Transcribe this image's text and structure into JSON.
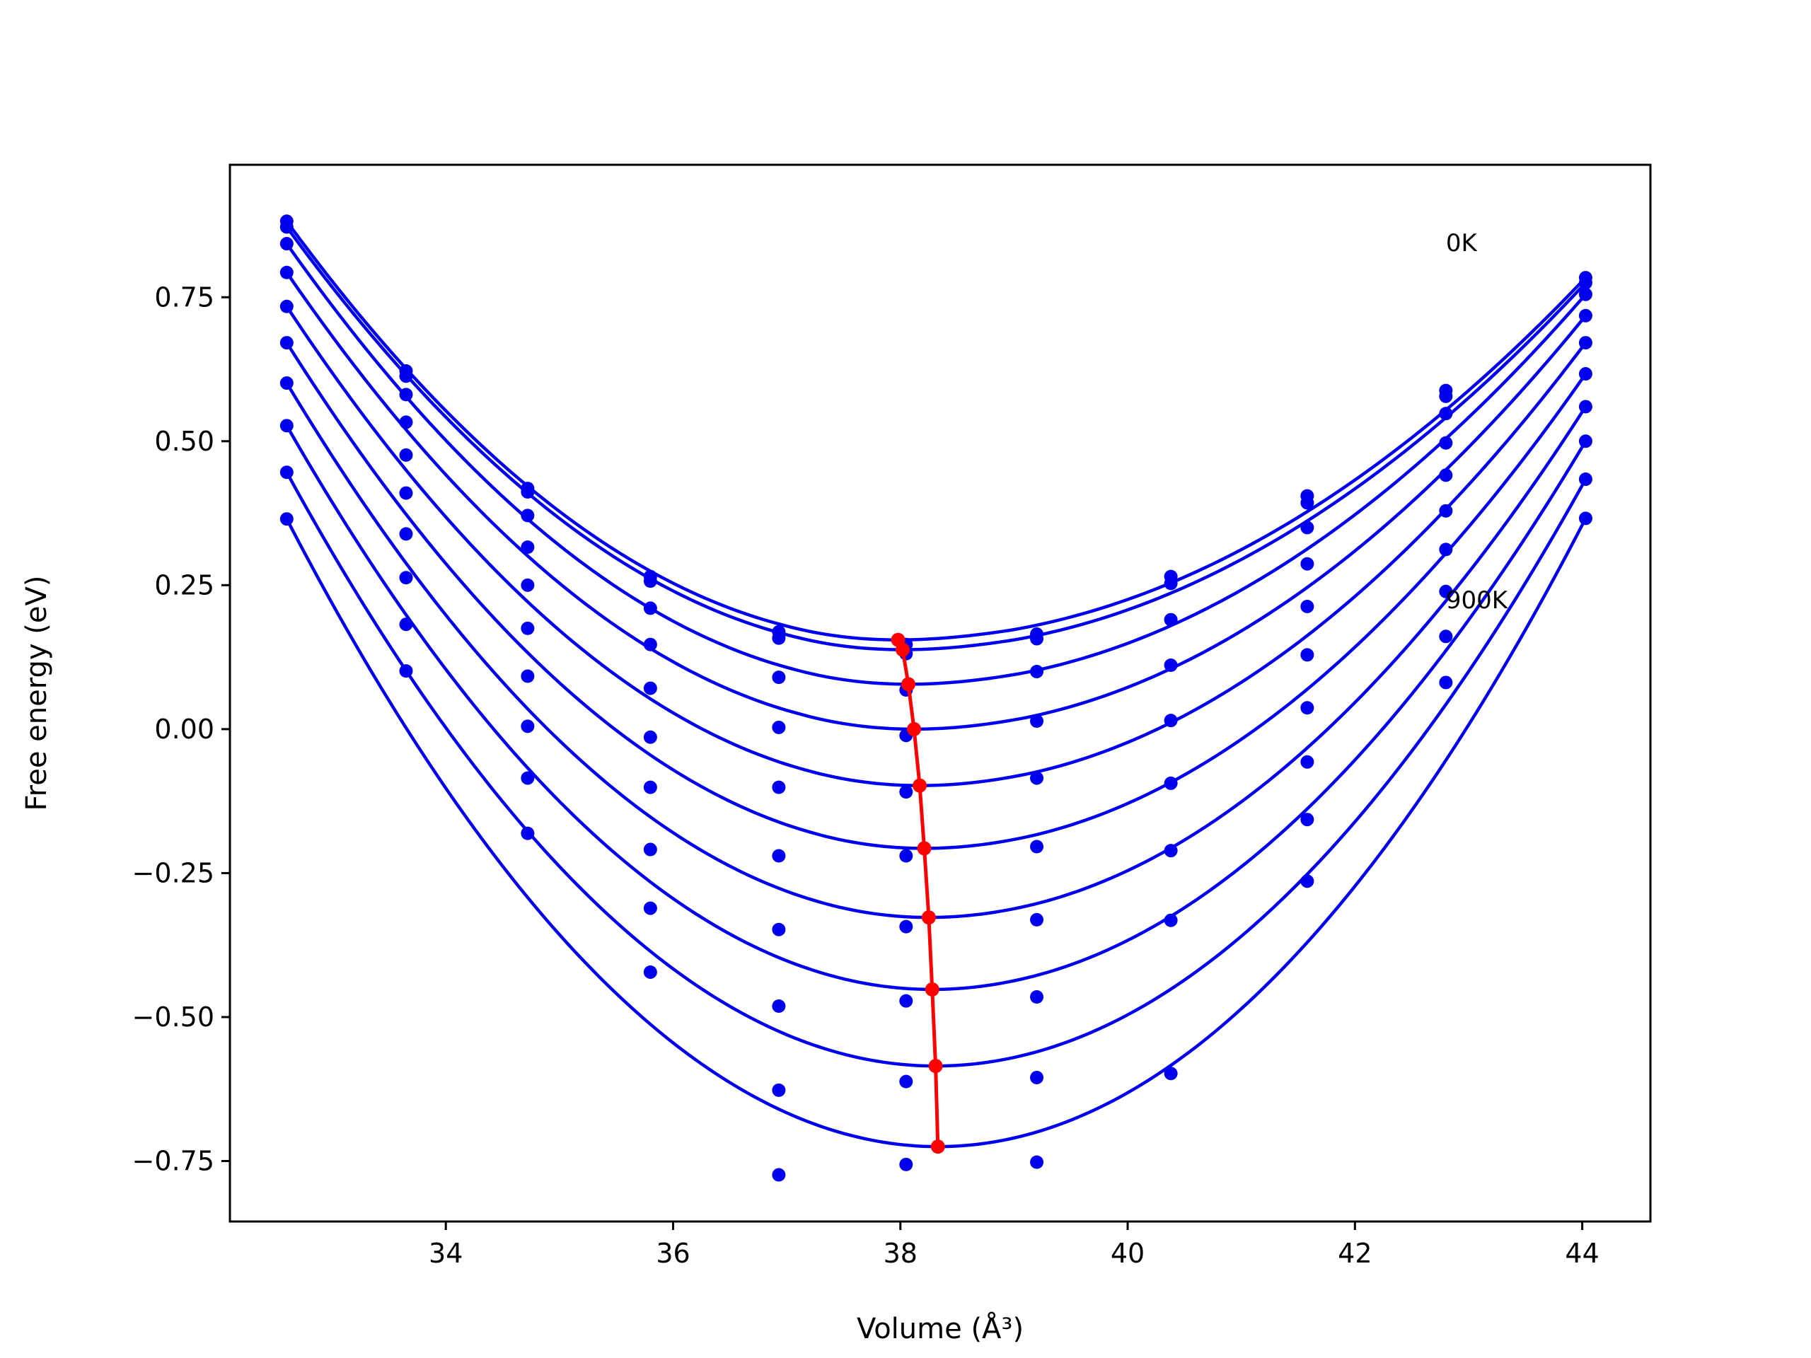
{
  "chart_data": {
    "type": "scatter",
    "xlabel": "Volume (Å³)",
    "ylabel": "Free energy (eV)",
    "xlim": [
      32.1,
      44.6
    ],
    "ylim": [
      -0.855,
      0.98
    ],
    "x_ticks": [
      34,
      36,
      38,
      40,
      42,
      44
    ],
    "x_tick_labels": [
      "34",
      "36",
      "38",
      "40",
      "42",
      "44"
    ],
    "y_ticks": [
      0.75,
      0.5,
      0.25,
      0.0,
      -0.25,
      -0.5,
      -0.75
    ],
    "y_tick_labels": [
      "0.75",
      "0.50",
      "0.25",
      "0.00",
      "−0.25",
      "−0.50",
      "−0.75"
    ],
    "grid": false,
    "legend": "none",
    "annotations": [
      {
        "text": "0K",
        "x": 42.8,
        "y": 0.83
      },
      {
        "text": "900K",
        "x": 42.8,
        "y": 0.21
      }
    ],
    "x_points": [
      32.6,
      33.65,
      34.72,
      35.8,
      36.93,
      38.05,
      39.2,
      40.38,
      41.58,
      42.8,
      44.03
    ],
    "series": [
      {
        "values": [
          0.882,
          0.622,
          0.418,
          0.265,
          0.169,
          0.147,
          0.165,
          0.265,
          0.405,
          0.588,
          0.784
        ],
        "fit_min": [
          37.98,
          0.155
        ]
      },
      {
        "values": [
          0.872,
          0.613,
          0.412,
          0.257,
          0.158,
          0.131,
          0.157,
          0.253,
          0.393,
          0.578,
          0.775
        ],
        "fit_min": [
          38.02,
          0.138
        ]
      },
      {
        "values": [
          0.843,
          0.581,
          0.371,
          0.21,
          0.09,
          0.068,
          0.1,
          0.19,
          0.35,
          0.548,
          0.755
        ],
        "fit_min": [
          38.07,
          0.078
        ]
      },
      {
        "values": [
          0.793,
          0.533,
          0.316,
          0.147,
          0.003,
          -0.011,
          0.014,
          0.111,
          0.287,
          0.497,
          0.718
        ],
        "fit_min": [
          38.12,
          0.0
        ]
      },
      {
        "values": [
          0.734,
          0.476,
          0.25,
          0.071,
          -0.101,
          -0.109,
          -0.085,
          0.015,
          0.213,
          0.441,
          0.671
        ],
        "fit_min": [
          38.17,
          -0.098
        ]
      },
      {
        "values": [
          0.671,
          0.41,
          0.175,
          -0.014,
          -0.22,
          -0.22,
          -0.204,
          -0.094,
          0.129,
          0.379,
          0.617
        ],
        "fit_min": [
          38.21,
          -0.207
        ]
      },
      {
        "values": [
          0.601,
          0.339,
          0.092,
          -0.101,
          -0.348,
          -0.343,
          -0.331,
          -0.211,
          0.037,
          0.312,
          0.56
        ],
        "fit_min": [
          38.25,
          -0.327
        ]
      },
      {
        "values": [
          0.527,
          0.263,
          0.005,
          -0.209,
          -0.481,
          -0.472,
          -0.465,
          -0.332,
          -0.057,
          0.239,
          0.5
        ],
        "fit_min": [
          38.28,
          -0.452
        ]
      },
      {
        "values": [
          0.446,
          0.182,
          -0.085,
          -0.311,
          -0.627,
          -0.612,
          -0.605,
          -0.598,
          -0.157,
          0.161,
          0.434
        ],
        "fit_min": [
          38.31,
          -0.585
        ]
      },
      {
        "values": [
          0.365,
          0.101,
          -0.181,
          -0.422,
          -0.774,
          -0.756,
          -0.752,
          null,
          -0.264,
          0.081,
          0.366
        ],
        "fit_min": [
          38.33,
          -0.725
        ]
      }
    ],
    "minima_line": {
      "x": [
        37.98,
        38.02,
        38.07,
        38.12,
        38.17,
        38.21,
        38.25,
        38.28,
        38.31,
        38.33
      ],
      "y": [
        0.155,
        0.138,
        0.078,
        0.0,
        -0.098,
        -0.207,
        -0.327,
        -0.452,
        -0.585,
        -0.725
      ]
    },
    "colors": {
      "points": "#0000ee",
      "curves": "#0000ee",
      "minima": "#ff0000",
      "axes": "#000000"
    }
  }
}
